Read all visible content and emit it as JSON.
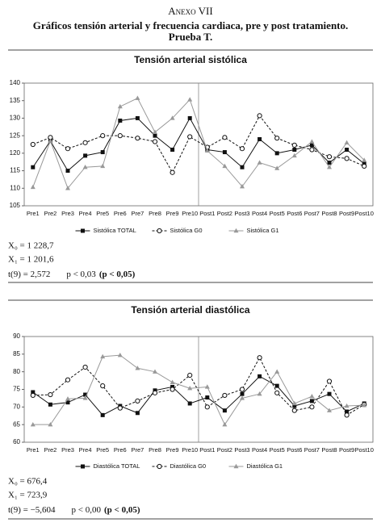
{
  "document": {
    "annex": "Anexo VII",
    "title": [
      "Gráficos tensión arterial y frecuencia cardiaca, pre y post tratamiento.",
      "Prueba T."
    ]
  },
  "chart_data": [
    {
      "type": "line",
      "title": "Tensión arterial sistólica",
      "categories": [
        "Pre1",
        "Pre2",
        "Pre3",
        "Pre4",
        "Pre5",
        "Pre6",
        "Pre7",
        "Pre8",
        "Pre9",
        "Pre10",
        "Post1",
        "Post2",
        "Post3",
        "Post4",
        "Post5",
        "Post6",
        "Post7",
        "Post8",
        "Post9",
        "Post10"
      ],
      "ylim": [
        105,
        140
      ],
      "yticks": [
        105,
        110,
        115,
        120,
        125,
        130,
        135,
        140
      ],
      "grid": false,
      "series": [
        {
          "name": "Sistólica TOTAL",
          "color": "#111111",
          "marker": "square",
          "dashed": false,
          "values": [
            116,
            123.5,
            115,
            119.3,
            120.3,
            129.3,
            130,
            125,
            121,
            130,
            121,
            120.3,
            116,
            124,
            120,
            121,
            122.3,
            117.3,
            121,
            117
          ]
        },
        {
          "name": "Sistólica G0",
          "color": "#111111",
          "marker": "circle",
          "dashed": true,
          "values": [
            122.5,
            124.5,
            121.3,
            123,
            125,
            125,
            124.3,
            123.3,
            114.5,
            124.7,
            121.7,
            124.5,
            121.3,
            130.7,
            124.3,
            122.3,
            121,
            119,
            118.5,
            116.3
          ]
        },
        {
          "name": "Sistólica G1",
          "color": "#999999",
          "marker": "triangle",
          "dashed": false,
          "values": [
            110.3,
            123.5,
            110,
            116,
            116.3,
            133.3,
            135.7,
            126,
            130,
            135.3,
            120.7,
            116.3,
            110.5,
            117.3,
            115.7,
            119.3,
            123.3,
            116,
            123,
            118
          ]
        }
      ],
      "annotations": [
        "X₀ = 1 228,7",
        "X₁ = 1 201,6"
      ],
      "test": {
        "statistic": "t(9) = 2,572",
        "p": "p < 0,03",
        "criterion": "(p < 0,05)"
      }
    },
    {
      "type": "line",
      "title": "Tensión arterial diastólica",
      "categories": [
        "Pre1",
        "Pre2",
        "Pre3",
        "Pre4",
        "Pre5",
        "Pre6",
        "Pre7",
        "Pre8",
        "Pre9",
        "Pre10",
        "Post1",
        "Post2",
        "Post3",
        "Post4",
        "Post5",
        "Post6",
        "Post7",
        "Post8",
        "Post9",
        "Post10"
      ],
      "ylim": [
        60,
        90
      ],
      "yticks": [
        60,
        65,
        70,
        75,
        80,
        85,
        90
      ],
      "grid": false,
      "series": [
        {
          "name": "Diastólica TOTAL",
          "color": "#111111",
          "marker": "square",
          "dashed": false,
          "values": [
            74.2,
            70.7,
            71.3,
            73.5,
            67.7,
            70.3,
            68.3,
            74.7,
            75.7,
            71,
            72.7,
            69,
            73.7,
            78.7,
            76,
            70.3,
            71.7,
            73.7,
            68.7,
            71
          ]
        },
        {
          "name": "Diastólica G0",
          "color": "#111111",
          "marker": "circle",
          "dashed": true,
          "values": [
            73.3,
            73.5,
            77.7,
            81.3,
            76,
            69.7,
            71.7,
            74,
            75,
            79,
            70,
            73.3,
            75,
            84,
            74,
            69,
            70,
            77.3,
            67.7,
            70.7
          ]
        },
        {
          "name": "Diastólica G1",
          "color": "#999999",
          "marker": "triangle",
          "dashed": false,
          "values": [
            65,
            65,
            72.3,
            72.5,
            84.3,
            84.7,
            81,
            80,
            77,
            75.3,
            75.7,
            65,
            72.5,
            73.7,
            80,
            71,
            73,
            69,
            70.3,
            70.5
          ]
        }
      ],
      "annotations": [
        "X₀ = 676,4",
        "X₁ = 723,9"
      ],
      "test": {
        "statistic": "t(9) = −5,604",
        "p": "p < 0,00",
        "criterion": "(p < 0,05)"
      }
    }
  ]
}
